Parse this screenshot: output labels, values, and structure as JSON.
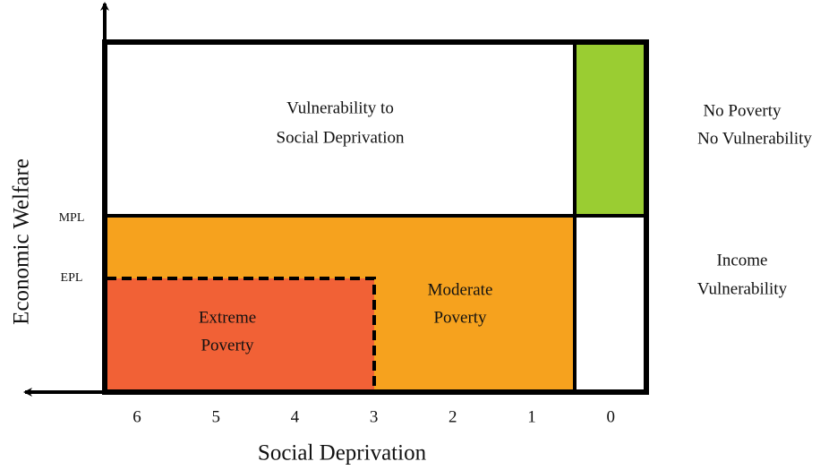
{
  "y_axis": {
    "label": "Economic Welfare",
    "lines": [
      "MPL",
      "EPL"
    ]
  },
  "x_axis": {
    "label": "Social Deprivation",
    "ticks": [
      6,
      5,
      4,
      3,
      2,
      1,
      0
    ]
  },
  "regions": {
    "vulnerability_social": [
      "Vulnerability to",
      "Social Deprivation"
    ],
    "no_poverty": [
      "No Poverty",
      "No Vulnerability"
    ],
    "income_vulnerability": [
      "Income",
      "Vulnerability"
    ],
    "moderate_poverty": [
      "Moderate",
      "Poverty"
    ],
    "extreme_poverty": [
      "Extreme",
      "Poverty"
    ]
  }
}
